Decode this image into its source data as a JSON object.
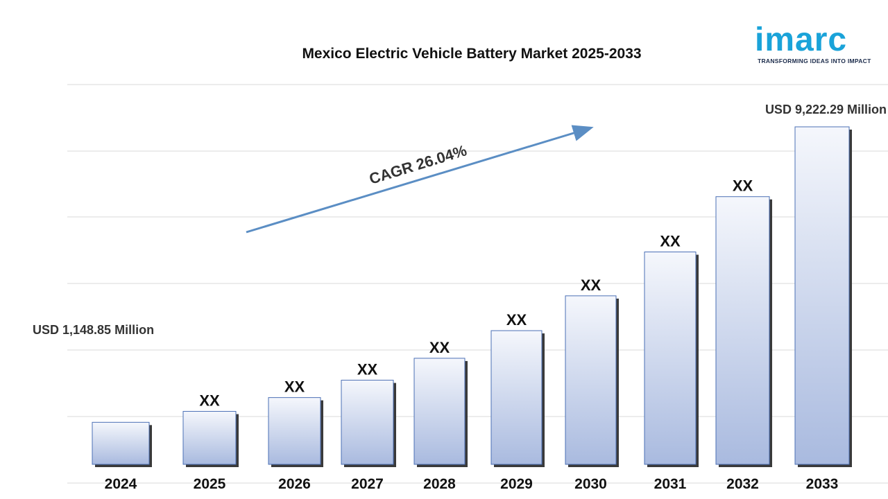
{
  "logo": {
    "name": "imarc",
    "tagline": "TRANSFORMING IDEAS INTO IMPACT",
    "color": "#1aa3d9"
  },
  "chart_data": {
    "type": "bar",
    "title": "Mexico Electric Vehicle Battery Market 2025-2033",
    "categories": [
      "2024",
      "2025",
      "2026",
      "2027",
      "2028",
      "2029",
      "2030",
      "2031",
      "2032",
      "2033"
    ],
    "values": [
      1148.85,
      1447.9,
      1824.8,
      2299.8,
      2898.7,
      3653.4,
      4604.6,
      5803.6,
      7314.7,
      9222.29
    ],
    "bar_labels": [
      "",
      "XX",
      "XX",
      "XX",
      "XX",
      "XX",
      "XX",
      "XX",
      "XX",
      ""
    ],
    "start_value_label": "USD 1,148.85 Million",
    "end_value_label": "USD  9,222.29 Million",
    "cagr_label": "CAGR  26.04%",
    "unit": "USD Million",
    "grid": true,
    "bar_gradient": [
      "#f5f7fc",
      "#a9badf"
    ],
    "arrow_color": "#5b8ec4"
  }
}
